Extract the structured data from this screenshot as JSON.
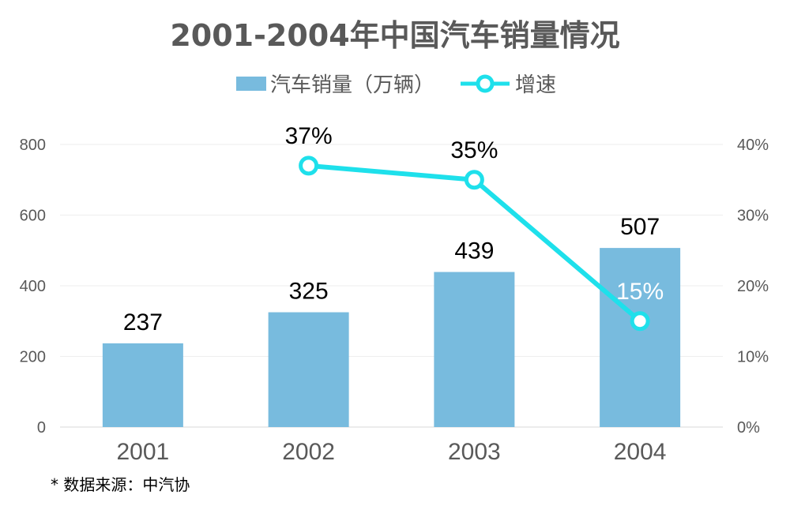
{
  "chart_data": {
    "type": "bar",
    "title": "2001-2004年中国汽车销量情况",
    "categories": [
      "2001",
      "2002",
      "2003",
      "2004"
    ],
    "series": [
      {
        "name": "汽车销量（万辆）",
        "type": "bar",
        "axis": "left",
        "values": [
          237,
          325,
          439,
          507
        ],
        "labels": [
          "237",
          "325",
          "439",
          "507"
        ]
      },
      {
        "name": "增速",
        "type": "line",
        "axis": "right",
        "values": [
          null,
          37,
          35,
          15
        ],
        "labels": [
          "",
          "37%",
          "35%",
          "15%"
        ]
      }
    ],
    "ylim_left": [
      0,
      800
    ],
    "ylim_right": [
      0,
      40
    ],
    "yticks_left": [
      "0",
      "200",
      "400",
      "600",
      "800"
    ],
    "yticks_right": [
      "0%",
      "10%",
      "20%",
      "30%",
      "40%"
    ],
    "grid": true,
    "legend_position": "top",
    "colors": {
      "bar": "#78BBDE",
      "line": "#1EE0EB",
      "text": "#595959"
    }
  },
  "footnote": "* 数据来源：中汽协"
}
